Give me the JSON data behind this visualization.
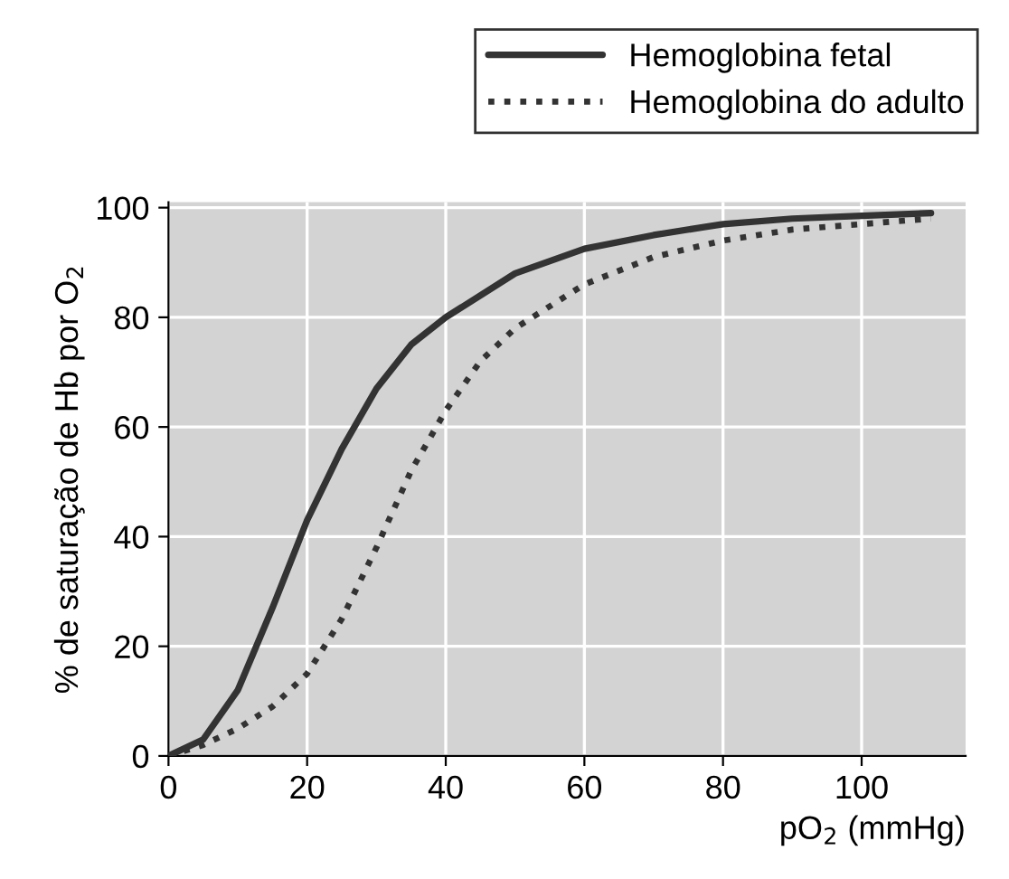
{
  "chart_data": {
    "type": "line",
    "xlabel": "pO$_{2}$ (mmHg)",
    "ylabel": "% de saturação de Hb por O$_{2}$",
    "xlim": [
      0,
      115
    ],
    "ylim": [
      0,
      101
    ],
    "xticks": [
      0,
      20,
      40,
      60,
      80,
      100
    ],
    "yticks": [
      0,
      20,
      40,
      60,
      80,
      100
    ],
    "grid": true,
    "legend": "top right",
    "marker": "none",
    "series": [
      {
        "name": "Hemoglobina fetal",
        "color": "#333333",
        "line_style": "solid",
        "x": [
          0,
          5,
          10,
          15,
          20,
          25,
          30,
          35,
          40,
          50,
          60,
          70,
          80,
          90,
          100,
          110
        ],
        "values": [
          0,
          3,
          12,
          27,
          43,
          56,
          67,
          75,
          80,
          88,
          92.5,
          95,
          97,
          98,
          98.5,
          99
        ]
      },
      {
        "name": "Hemoglobina do adulto",
        "color": "#333333",
        "line_style": "dotted",
        "x": [
          0,
          5,
          10,
          15,
          20,
          25,
          30,
          35,
          40,
          45,
          50,
          60,
          70,
          80,
          90,
          100,
          110
        ],
        "values": [
          0,
          2,
          5,
          9,
          15,
          25,
          38,
          52,
          63,
          72,
          78,
          86,
          91,
          94,
          96,
          97,
          98
        ]
      }
    ]
  }
}
